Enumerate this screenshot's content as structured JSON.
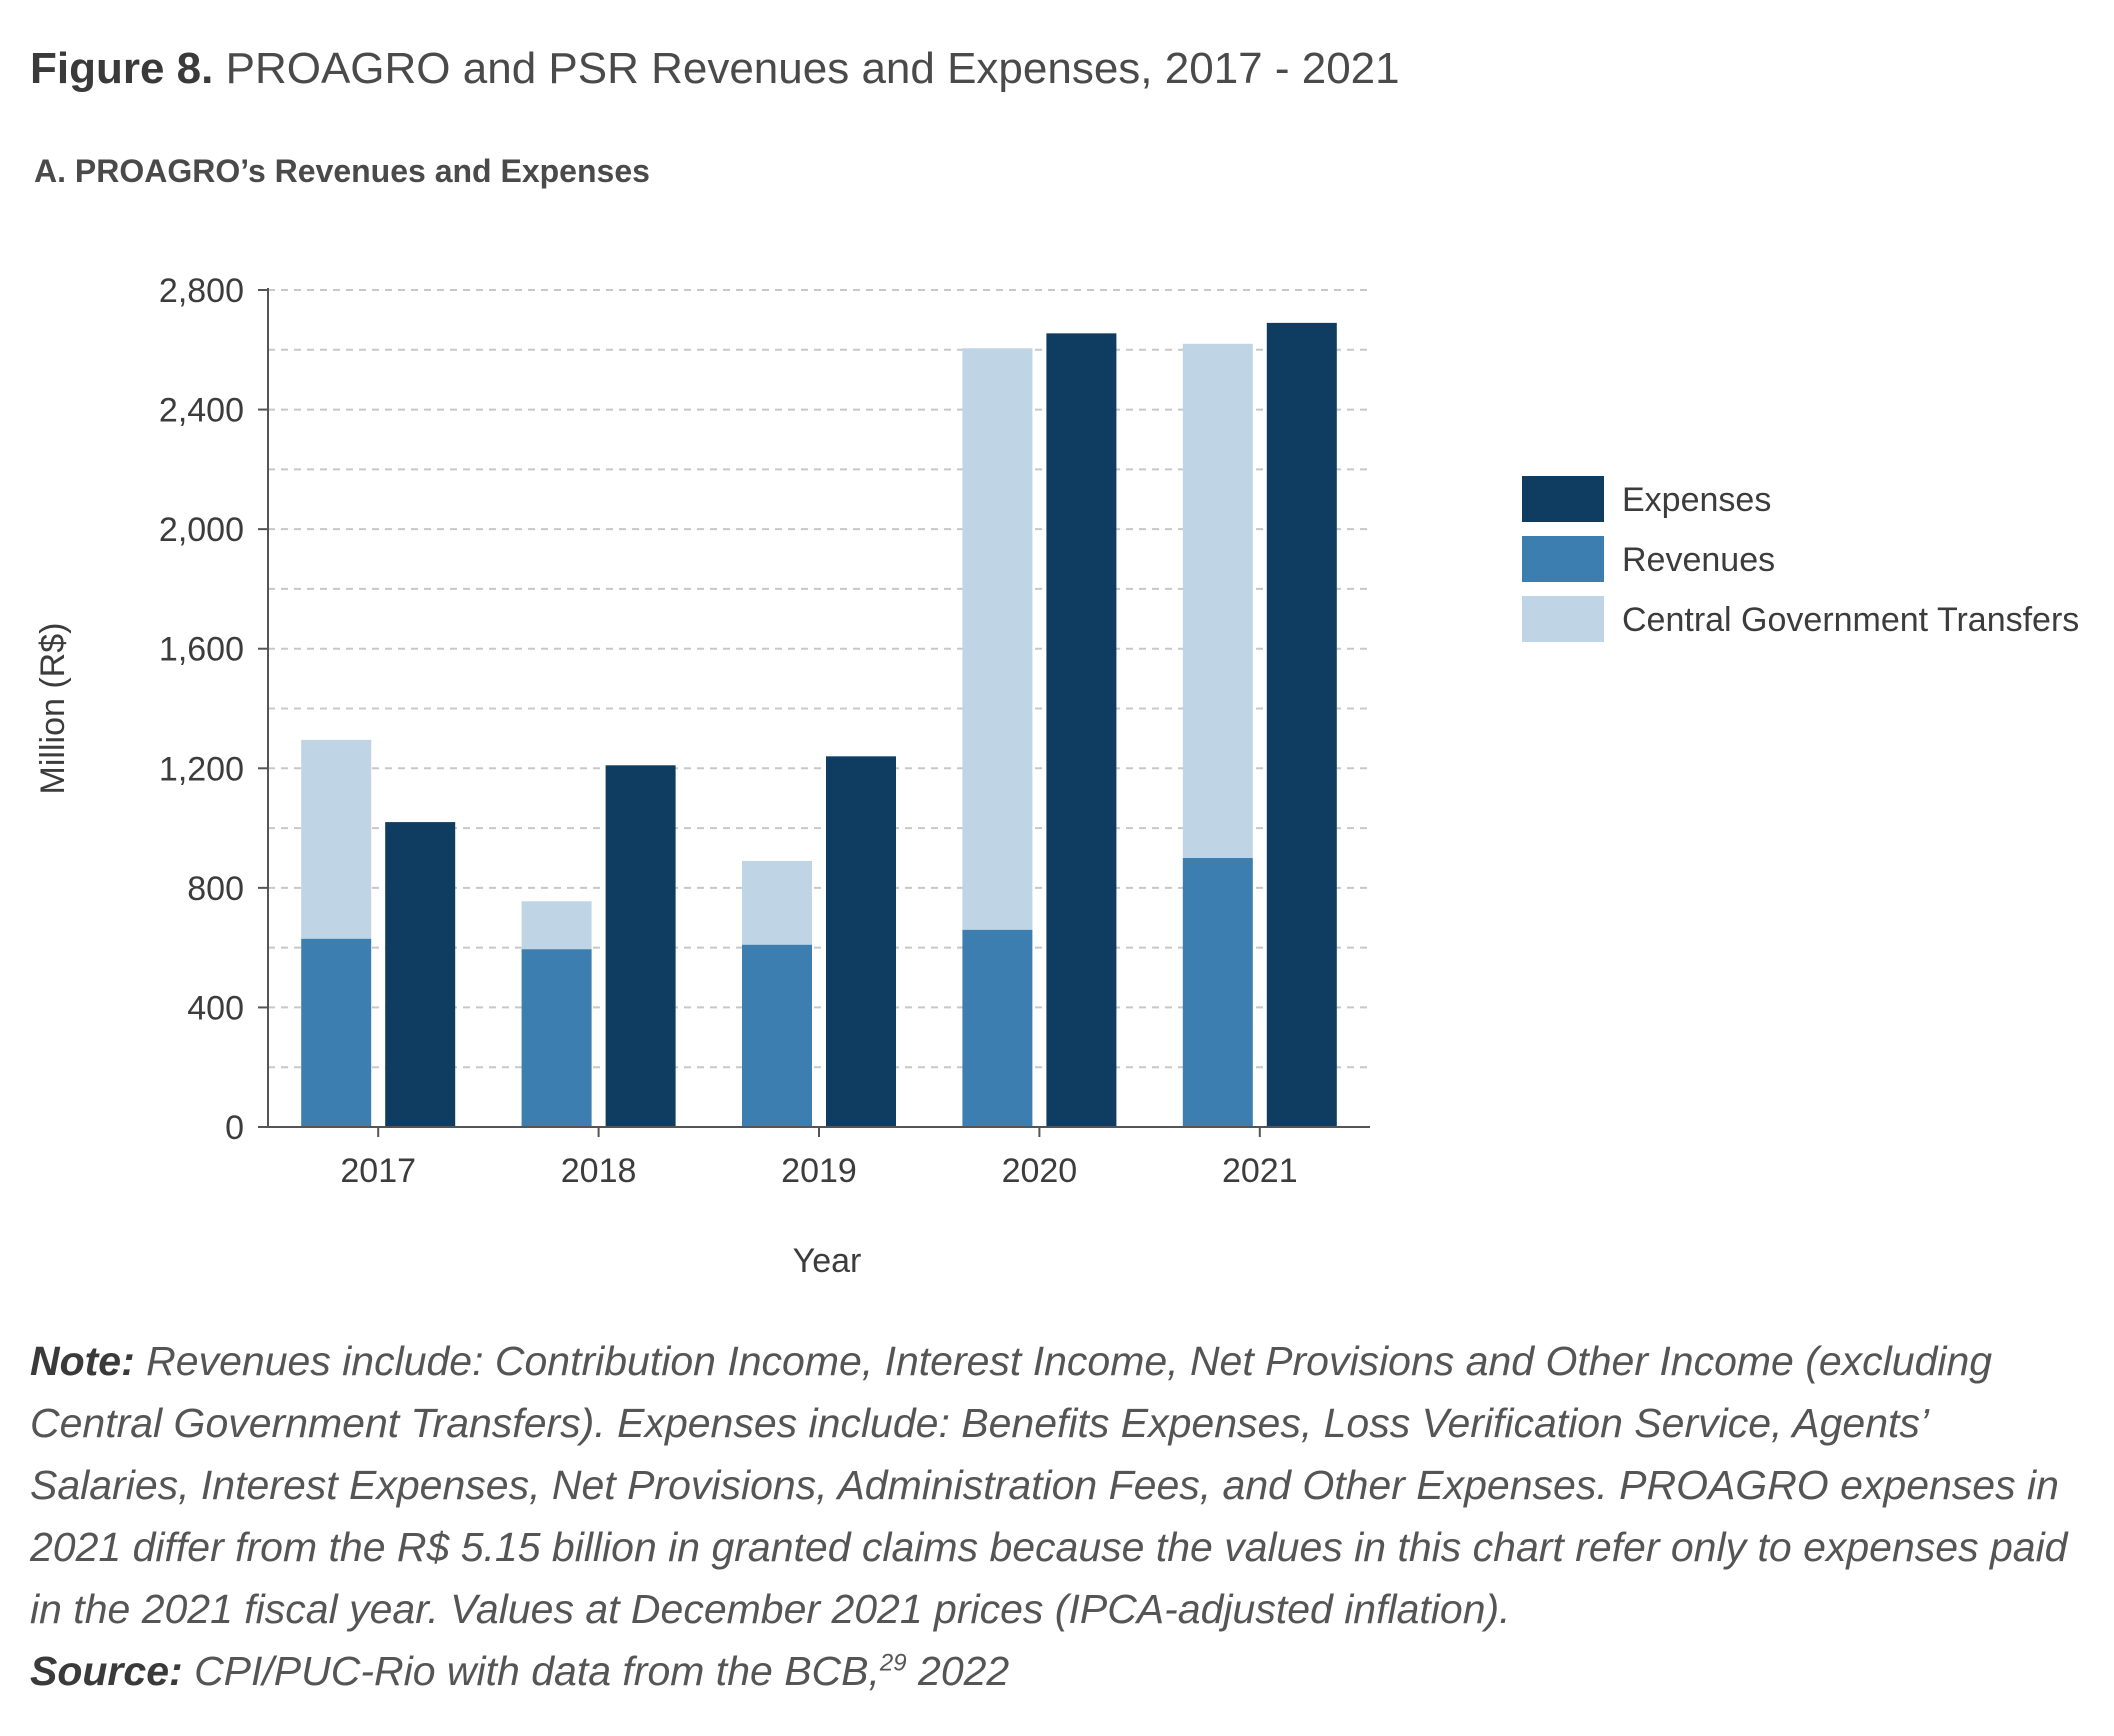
{
  "figure": {
    "label": "Figure 8.",
    "title": "PROAGRO and PSR Revenues and Expenses, 2017 - 2021",
    "panel_title": "A. PROAGRO’s Revenues and Expenses"
  },
  "chart_data": {
    "type": "bar",
    "stacking": "stacked + grouped",
    "categories": [
      "2017",
      "2018",
      "2019",
      "2020",
      "2021"
    ],
    "series": [
      {
        "name": "Revenues",
        "stack": "funding",
        "color": "#3d7eb0",
        "values": [
          630,
          595,
          610,
          660,
          900
        ]
      },
      {
        "name": "Central Government Transfers",
        "stack": "funding",
        "color": "#bfd4e4",
        "values": [
          665,
          160,
          280,
          1945,
          1720
        ]
      },
      {
        "name": "Expenses",
        "stack": "expenses",
        "color": "#0f3d62",
        "values": [
          1020,
          1210,
          1240,
          2655,
          2690
        ]
      }
    ],
    "legend_order": [
      "Expenses",
      "Revenues",
      "Central Government Transfers"
    ],
    "legend_position": "right",
    "xlabel": "Year",
    "ylabel": "Million (R$)",
    "ylim": [
      0,
      2800
    ],
    "yticks": [
      0,
      400,
      800,
      1200,
      1600,
      2000,
      2400,
      2800
    ],
    "ytick_labels": [
      "0",
      "400",
      "800",
      "1,200",
      "1,600",
      "2,000",
      "2,400",
      "2,800"
    ],
    "grid_step": 200,
    "grid": true
  },
  "note": {
    "label": "Note:",
    "text": "Revenues include: Contribution Income, Interest Income, Net Provisions and Other Income (excluding Central Government Transfers). Expenses include: Benefits Expenses, Loss Verification Service, Agents’ Salaries, Interest Expenses, Net Provisions, Administration Fees, and Other Expenses. PROAGRO expenses in 2021 differ from the R$ 5.15 billion in granted claims because the values in this chart refer only to expenses paid in the 2021 fiscal year. Values at December 2021 prices (IPCA-adjusted inflation)."
  },
  "source": {
    "label": "Source:",
    "text": "CPI/PUC-Rio with data from the BCB,",
    "footnote": "29",
    "year": "2022"
  }
}
